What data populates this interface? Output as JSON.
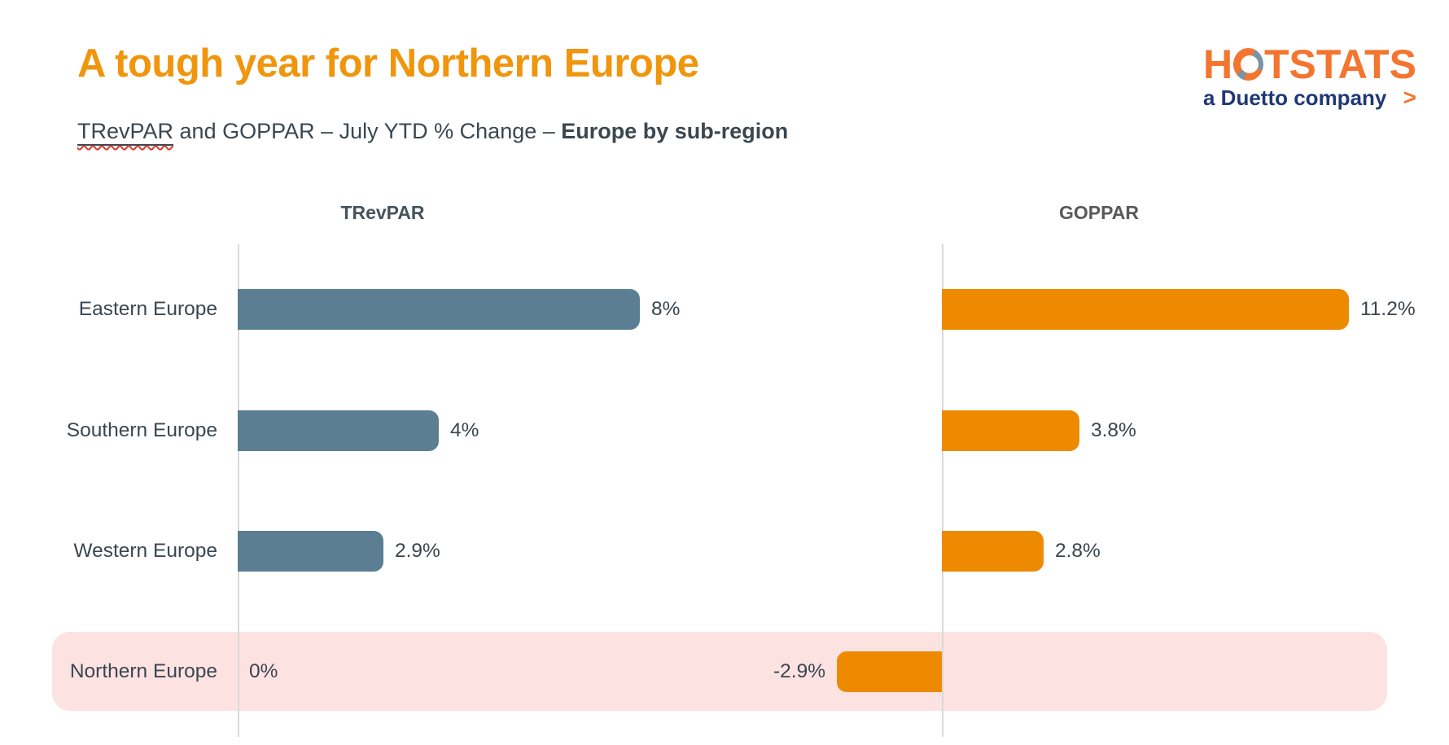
{
  "slide": {
    "title": "A tough year for Northern Europe",
    "subtitle": {
      "underlined_term": "TRevPAR",
      "middle_text": " and GOPPAR – July YTD % Change – ",
      "bold_text": "Europe by sub-region"
    },
    "logo": {
      "brand": "HOTSTATS",
      "tagline": "a Duetto company",
      "chevron": ">",
      "brand_color": "#F4752F",
      "tagline_color": "#1F3875",
      "ring_accent_color": "#7A93A5"
    }
  },
  "chart_data": {
    "type": "bar",
    "orientation": "horizontal",
    "unit": "%",
    "categories": [
      "Eastern Europe",
      "Southern Europe",
      "Western Europe",
      "Northern Europe"
    ],
    "series": [
      {
        "name": "TRevPAR",
        "values": [
          8,
          4,
          2.9,
          0
        ],
        "labels": [
          "8%",
          "4%",
          "2.9%",
          "0%"
        ],
        "color": "#5B7E93",
        "header_color": "#44525C"
      },
      {
        "name": "GOPPAR",
        "values": [
          11.2,
          3.8,
          2.8,
          -2.9
        ],
        "labels": [
          "11.2%",
          "3.8%",
          "2.8%",
          "-2.9%"
        ],
        "color": "#EE8A00",
        "header_color": "#595959"
      }
    ],
    "highlight": {
      "category": "Northern Europe",
      "row_index": 3,
      "color": "#FDE2E2"
    },
    "axis_line_color": "#D9D9D9",
    "value_label_color": "#39454E",
    "grid": "off",
    "legend": "none"
  }
}
